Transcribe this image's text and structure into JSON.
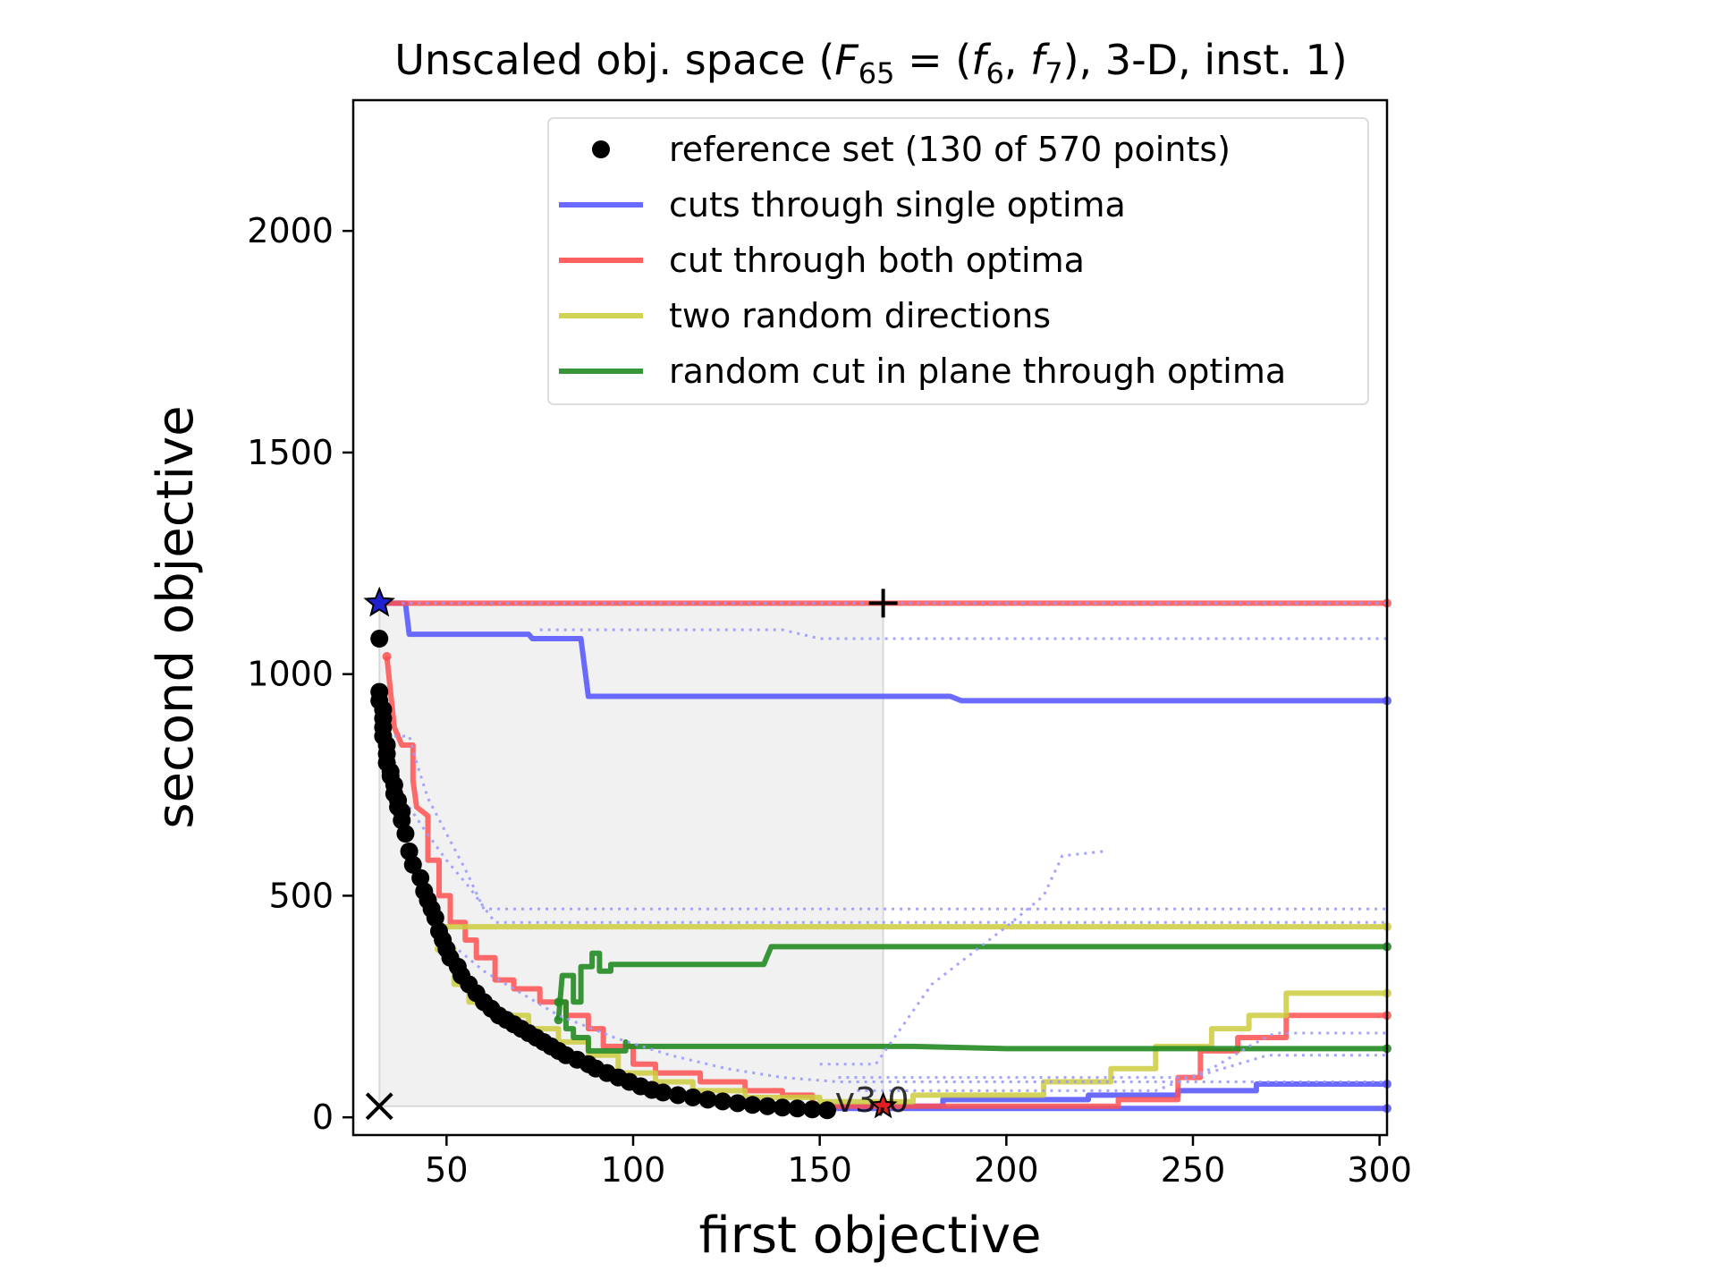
{
  "chart_data": {
    "type": "line",
    "title_parts": {
      "prefix": "Unscaled obj. space (",
      "F": "F",
      "F_sub": "65",
      "eq": " = (",
      "f1": "f",
      "f1_sub": "6",
      "comma": ", ",
      "f2": "f",
      "f2_sub": "7",
      "suffix": "), 3-D, inst. 1)"
    },
    "xlabel": "first objective",
    "ylabel": "second objective",
    "xlim": [
      25,
      302
    ],
    "ylim": [
      -40,
      2295
    ],
    "xticks": [
      50,
      100,
      150,
      200,
      250,
      300
    ],
    "yticks": [
      0,
      500,
      1000,
      1500,
      2000
    ],
    "grid": false,
    "legend_position": "upper-right",
    "annotation": "v3,0",
    "reference_box": {
      "x": [
        32,
        167
      ],
      "y": [
        25,
        1160
      ]
    },
    "markers": {
      "blue_star": {
        "x": 32,
        "y": 1160,
        "color": "#2020d0"
      },
      "red_star": {
        "x": 167,
        "y": 25,
        "color": "#e02020"
      },
      "plus": {
        "x": 167,
        "y": 1160
      },
      "cross": {
        "x": 32,
        "y": 25
      }
    },
    "legend": [
      {
        "label": "reference set (130 of 570 points)",
        "kind": "dot",
        "color": "#000000"
      },
      {
        "label": "cuts through single optima",
        "kind": "line",
        "color": "#5a5aff"
      },
      {
        "label": "cut through both optima",
        "kind": "line",
        "color": "#ff5050"
      },
      {
        "label": "two random directions",
        "kind": "line",
        "color": "#cccc40"
      },
      {
        "label": "random cut in plane through optima",
        "kind": "line",
        "color": "#228b22"
      }
    ],
    "reference_set": {
      "color": "#000000",
      "points": [
        [
          32,
          1080
        ],
        [
          32,
          960
        ],
        [
          32,
          940
        ],
        [
          33,
          920
        ],
        [
          33,
          900
        ],
        [
          33,
          880
        ],
        [
          33,
          860
        ],
        [
          34,
          840
        ],
        [
          34,
          820
        ],
        [
          34,
          800
        ],
        [
          35,
          780
        ],
        [
          35,
          770
        ],
        [
          36,
          750
        ],
        [
          36,
          730
        ],
        [
          37,
          715
        ],
        [
          37,
          700
        ],
        [
          38,
          690
        ],
        [
          38,
          670
        ],
        [
          39,
          640
        ],
        [
          40,
          600
        ],
        [
          41,
          570
        ],
        [
          43,
          540
        ],
        [
          44,
          510
        ],
        [
          45,
          490
        ],
        [
          46,
          470
        ],
        [
          47,
          450
        ],
        [
          48,
          420
        ],
        [
          49,
          400
        ],
        [
          50,
          380
        ],
        [
          51,
          360
        ],
        [
          53,
          340
        ],
        [
          54,
          320
        ],
        [
          56,
          300
        ],
        [
          58,
          280
        ],
        [
          60,
          260
        ],
        [
          62,
          245
        ],
        [
          64,
          230
        ],
        [
          66,
          220
        ],
        [
          68,
          210
        ],
        [
          70,
          200
        ],
        [
          72,
          190
        ],
        [
          74,
          180
        ],
        [
          76,
          170
        ],
        [
          78,
          160
        ],
        [
          80,
          150
        ],
        [
          82,
          140
        ],
        [
          85,
          130
        ],
        [
          88,
          120
        ],
        [
          90,
          110
        ],
        [
          93,
          100
        ],
        [
          96,
          90
        ],
        [
          99,
          80
        ],
        [
          102,
          70
        ],
        [
          105,
          62
        ],
        [
          108,
          56
        ],
        [
          112,
          50
        ],
        [
          116,
          45
        ],
        [
          120,
          40
        ],
        [
          124,
          36
        ],
        [
          128,
          32
        ],
        [
          132,
          28
        ],
        [
          136,
          25
        ],
        [
          140,
          22
        ],
        [
          144,
          20
        ],
        [
          148,
          18
        ],
        [
          152,
          16
        ]
      ]
    },
    "series": [
      {
        "color": "#5a5aff",
        "opacity": 0.9,
        "width": 6,
        "dotted": false,
        "points": [
          [
            32,
            1160
          ],
          [
            39,
            1160
          ],
          [
            40,
            1090
          ],
          [
            72,
            1090
          ],
          [
            73,
            1080
          ],
          [
            86,
            1080
          ],
          [
            88,
            950
          ],
          [
            185,
            950
          ],
          [
            188,
            940
          ],
          [
            302,
            940
          ]
        ]
      },
      {
        "color": "#5a5aff",
        "opacity": 0.9,
        "width": 6,
        "dotted": false,
        "points": [
          [
            148,
            25
          ],
          [
            183,
            25
          ],
          [
            183,
            40
          ],
          [
            222,
            40
          ],
          [
            222,
            50
          ],
          [
            246,
            50
          ],
          [
            246,
            60
          ],
          [
            267,
            60
          ],
          [
            267,
            75
          ],
          [
            302,
            75
          ]
        ]
      },
      {
        "color": "#5a5aff",
        "opacity": 0.9,
        "width": 6,
        "dotted": false,
        "points": [
          [
            150,
            20
          ],
          [
            302,
            20
          ]
        ]
      },
      {
        "color": "#ff5050",
        "opacity": 0.85,
        "width": 6,
        "dotted": false,
        "points": [
          [
            32,
            1160
          ],
          [
            302,
            1160
          ]
        ]
      },
      {
        "color": "#ff5050",
        "opacity": 0.85,
        "width": 6,
        "dotted": false,
        "points": [
          [
            34,
            1040
          ],
          [
            35,
            960
          ],
          [
            36,
            880
          ],
          [
            38,
            840
          ],
          [
            41,
            840
          ],
          [
            41,
            760
          ],
          [
            42,
            700
          ],
          [
            45,
            680
          ],
          [
            45,
            580
          ],
          [
            48,
            580
          ],
          [
            48,
            500
          ],
          [
            51,
            500
          ],
          [
            51,
            440
          ],
          [
            55,
            440
          ],
          [
            55,
            400
          ],
          [
            58,
            400
          ],
          [
            58,
            360
          ],
          [
            63,
            360
          ],
          [
            63,
            310
          ],
          [
            68,
            310
          ],
          [
            68,
            290
          ],
          [
            75,
            290
          ],
          [
            75,
            260
          ],
          [
            82,
            260
          ],
          [
            82,
            230
          ],
          [
            88,
            230
          ],
          [
            88,
            200
          ],
          [
            92,
            200
          ],
          [
            92,
            160
          ],
          [
            100,
            160
          ],
          [
            100,
            120
          ],
          [
            106,
            120
          ],
          [
            106,
            100
          ],
          [
            118,
            100
          ],
          [
            118,
            80
          ],
          [
            130,
            80
          ],
          [
            130,
            60
          ],
          [
            140,
            60
          ],
          [
            140,
            50
          ],
          [
            148,
            50
          ],
          [
            148,
            25
          ],
          [
            230,
            25
          ],
          [
            230,
            40
          ],
          [
            246,
            40
          ],
          [
            246,
            90
          ],
          [
            252,
            90
          ],
          [
            252,
            150
          ],
          [
            262,
            150
          ],
          [
            262,
            180
          ],
          [
            275,
            180
          ],
          [
            275,
            230
          ],
          [
            302,
            230
          ]
        ]
      },
      {
        "color": "#cccc40",
        "opacity": 0.85,
        "width": 6,
        "dotted": false,
        "points": [
          [
            48,
            430
          ],
          [
            302,
            430
          ]
        ]
      },
      {
        "color": "#cccc40",
        "opacity": 0.85,
        "width": 6,
        "dotted": false,
        "points": [
          [
            48,
            380
          ],
          [
            52,
            380
          ],
          [
            52,
            300
          ],
          [
            56,
            300
          ],
          [
            56,
            260
          ],
          [
            62,
            260
          ],
          [
            62,
            230
          ],
          [
            72,
            230
          ],
          [
            72,
            200
          ],
          [
            80,
            200
          ],
          [
            80,
            170
          ],
          [
            88,
            170
          ],
          [
            88,
            140
          ],
          [
            96,
            140
          ],
          [
            96,
            100
          ],
          [
            106,
            100
          ],
          [
            106,
            80
          ],
          [
            116,
            80
          ],
          [
            116,
            60
          ],
          [
            130,
            60
          ],
          [
            130,
            45
          ],
          [
            150,
            45
          ],
          [
            150,
            35
          ],
          [
            175,
            35
          ],
          [
            175,
            50
          ],
          [
            210,
            50
          ],
          [
            210,
            80
          ],
          [
            228,
            80
          ],
          [
            228,
            110
          ],
          [
            240,
            110
          ],
          [
            240,
            160
          ],
          [
            255,
            160
          ],
          [
            255,
            200
          ],
          [
            265,
            200
          ],
          [
            265,
            230
          ],
          [
            275,
            230
          ],
          [
            275,
            280
          ],
          [
            302,
            280
          ]
        ]
      },
      {
        "color": "#228b22",
        "opacity": 0.9,
        "width": 6,
        "dotted": false,
        "points": [
          [
            80,
            220
          ],
          [
            81,
            320
          ],
          [
            84,
            320
          ],
          [
            84,
            260
          ],
          [
            86,
            260
          ],
          [
            86,
            340
          ],
          [
            89,
            340
          ],
          [
            89,
            370
          ],
          [
            91,
            370
          ],
          [
            91,
            330
          ],
          [
            94,
            330
          ],
          [
            94,
            345
          ],
          [
            135,
            345
          ],
          [
            137,
            385
          ],
          [
            302,
            385
          ]
        ]
      },
      {
        "color": "#228b22",
        "opacity": 0.9,
        "width": 6,
        "dotted": false,
        "points": [
          [
            80,
            260
          ],
          [
            82,
            260
          ],
          [
            82,
            200
          ],
          [
            84,
            200
          ],
          [
            84,
            180
          ],
          [
            88,
            180
          ],
          [
            88,
            150
          ],
          [
            98,
            150
          ],
          [
            98,
            170
          ],
          [
            99,
            160
          ],
          [
            175,
            160
          ],
          [
            200,
            155
          ],
          [
            302,
            155
          ]
        ]
      },
      {
        "color": "#9a9aff",
        "opacity": 0.9,
        "width": 3,
        "dotted": true,
        "points": [
          [
            38,
            1160
          ],
          [
            302,
            1160
          ]
        ]
      },
      {
        "color": "#9a9aff",
        "opacity": 0.9,
        "width": 3,
        "dotted": true,
        "points": [
          [
            75,
            1100
          ],
          [
            140,
            1100
          ],
          [
            150,
            1080
          ],
          [
            302,
            1080
          ]
        ]
      },
      {
        "color": "#9a9aff",
        "opacity": 0.9,
        "width": 3,
        "dotted": true,
        "points": [
          [
            36,
            860
          ],
          [
            40,
            860
          ],
          [
            42,
            800
          ],
          [
            45,
            720
          ],
          [
            50,
            640
          ],
          [
            55,
            560
          ],
          [
            60,
            470
          ],
          [
            70,
            470
          ],
          [
            302,
            470
          ]
        ]
      },
      {
        "color": "#9a9aff",
        "opacity": 0.9,
        "width": 3,
        "dotted": true,
        "points": [
          [
            40,
            700
          ],
          [
            44,
            650
          ],
          [
            50,
            580
          ],
          [
            56,
            520
          ],
          [
            63,
            440
          ],
          [
            75,
            440
          ],
          [
            302,
            440
          ]
        ]
      },
      {
        "color": "#9a9aff",
        "opacity": 0.9,
        "width": 3,
        "dotted": true,
        "points": [
          [
            50,
            400
          ],
          [
            60,
            330
          ],
          [
            70,
            280
          ],
          [
            80,
            230
          ],
          [
            95,
            180
          ],
          [
            110,
            140
          ],
          [
            125,
            110
          ],
          [
            140,
            90
          ],
          [
            155,
            80
          ],
          [
            302,
            80
          ]
        ]
      },
      {
        "color": "#9a9aff",
        "opacity": 0.9,
        "width": 3,
        "dotted": true,
        "points": [
          [
            150,
            120
          ],
          [
            165,
            120
          ],
          [
            180,
            300
          ],
          [
            200,
            430
          ],
          [
            210,
            500
          ],
          [
            215,
            590
          ],
          [
            226,
            600
          ]
        ]
      },
      {
        "color": "#9a9aff",
        "opacity": 0.9,
        "width": 3,
        "dotted": true,
        "points": [
          [
            155,
            90
          ],
          [
            250,
            90
          ],
          [
            262,
            120
          ],
          [
            270,
            140
          ],
          [
            302,
            140
          ]
        ]
      },
      {
        "color": "#9a9aff",
        "opacity": 0.9,
        "width": 3,
        "dotted": true,
        "points": [
          [
            160,
            60
          ],
          [
            240,
            60
          ],
          [
            255,
            110
          ],
          [
            265,
            160
          ],
          [
            272,
            190
          ],
          [
            302,
            190
          ]
        ]
      }
    ]
  }
}
